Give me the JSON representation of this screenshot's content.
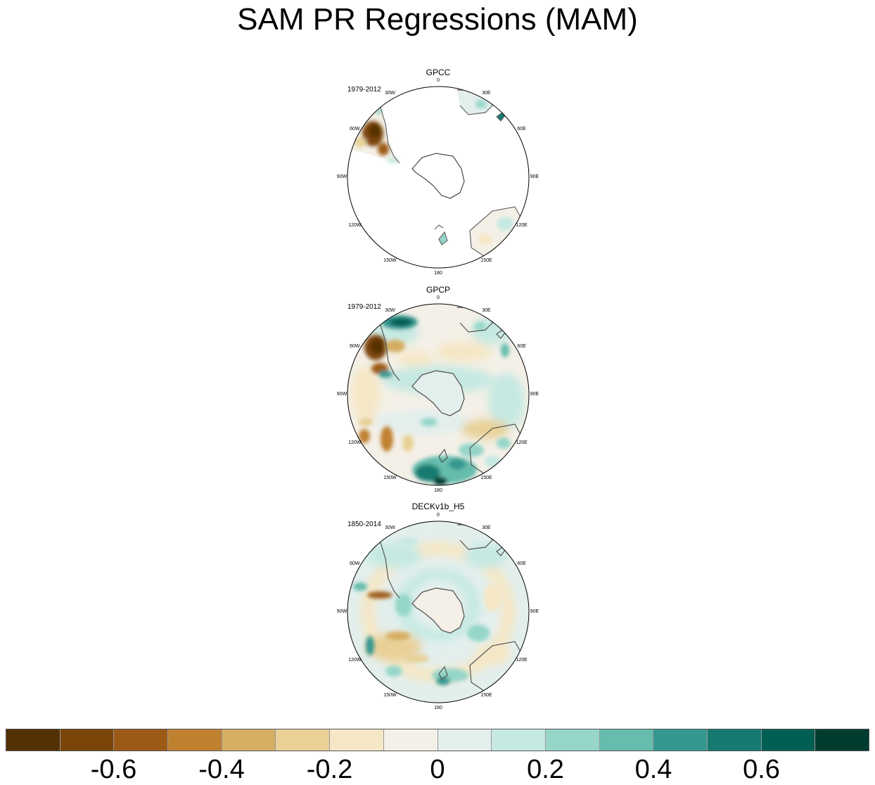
{
  "title": "SAM PR Regressions (MAM)",
  "panels": [
    {
      "name": "GPCC",
      "period": "1979-2012"
    },
    {
      "name": "GPCP",
      "period": "1979-2012"
    },
    {
      "name": "DECKv1b_H5",
      "period": "1850-2014"
    }
  ],
  "lon_labels": [
    "0",
    "30E",
    "60E",
    "90E",
    "120E",
    "150E",
    "180",
    "150W",
    "120W",
    "90W",
    "60W",
    "30W"
  ],
  "colorbar": {
    "colors": [
      "#543005",
      "#7b4508",
      "#9c5a17",
      "#bf8130",
      "#d6ae62",
      "#e8d097",
      "#f5e7c6",
      "#f4f0e7",
      "#e3efed",
      "#c6e9e2",
      "#95d6c9",
      "#66bdae",
      "#35978f",
      "#167a71",
      "#015e53",
      "#003c30"
    ],
    "tick_labels": [
      "-0.6",
      "-0.4",
      "-0.2",
      "0",
      "0.2",
      "0.4",
      "0.6"
    ]
  }
}
